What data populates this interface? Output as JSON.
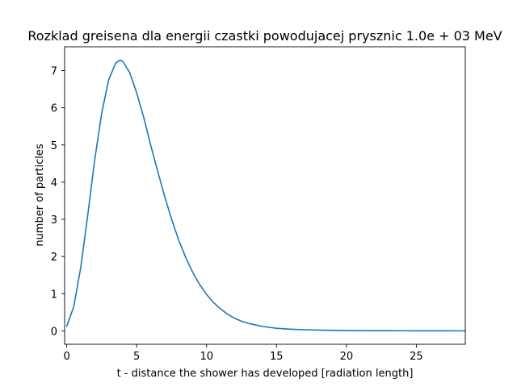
{
  "chart_data": {
    "type": "line",
    "title": "Rozklad greisena dla energii czastki powodujacej prysznic 1.0e + 03 MeV",
    "xlabel": "t - distance the shower has developed [radiation length]",
    "ylabel": "number of particles",
    "xlim": [
      -0.15,
      28.5
    ],
    "ylim": [
      -0.36,
      7.64
    ],
    "xticks": [
      0,
      5,
      10,
      15,
      20,
      25
    ],
    "yticks": [
      0,
      1,
      2,
      3,
      4,
      5,
      6,
      7
    ],
    "grid": false,
    "legend": "none",
    "series": [
      {
        "color": "#1f77b4",
        "x": [
          0,
          0.5,
          1,
          1.5,
          2,
          2.5,
          3,
          3.5,
          3.8,
          4,
          4.5,
          5,
          5.5,
          6,
          6.5,
          7,
          7.5,
          8,
          8.5,
          9,
          9.5,
          10,
          10.5,
          11,
          11.5,
          12,
          12.5,
          13,
          14,
          15,
          16,
          17,
          18,
          19,
          20,
          21,
          22,
          23,
          24,
          25,
          26,
          27,
          28.5
        ],
        "y": [
          0.12,
          0.65,
          1.7,
          3.1,
          4.6,
          5.85,
          6.75,
          7.2,
          7.28,
          7.25,
          6.95,
          6.4,
          5.75,
          5.0,
          4.3,
          3.62,
          3.0,
          2.45,
          1.98,
          1.58,
          1.25,
          0.98,
          0.76,
          0.59,
          0.45,
          0.34,
          0.26,
          0.2,
          0.12,
          0.07,
          0.045,
          0.03,
          0.02,
          0.015,
          0.01,
          0.007,
          0.005,
          0.004,
          0.003,
          0.002,
          0.0015,
          0.001,
          0.0005
        ]
      }
    ]
  }
}
